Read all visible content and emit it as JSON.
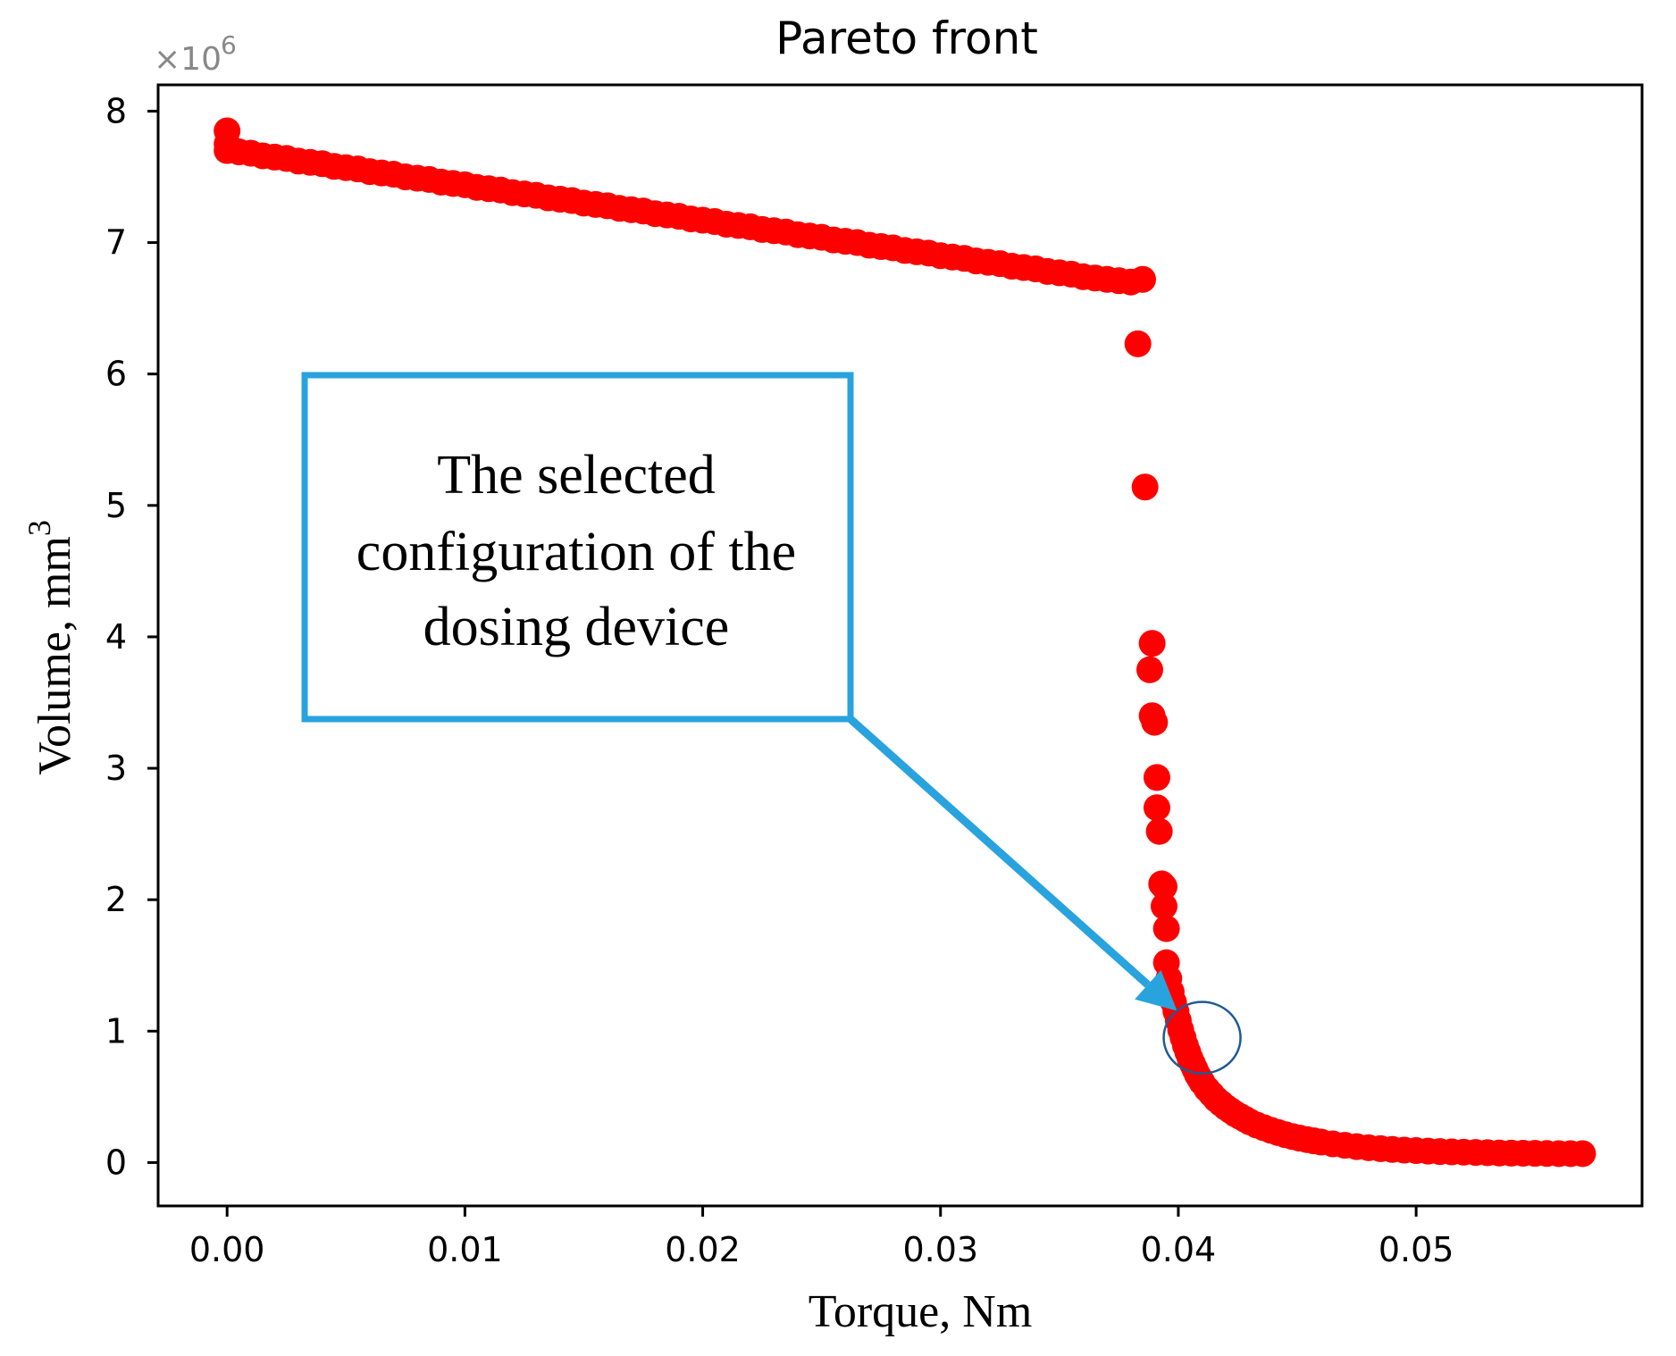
{
  "chart_data": {
    "type": "scatter",
    "title": "Pareto front",
    "xlabel": "Torque, Nm",
    "ylabel": "Volume, mm",
    "ylabel_superscript": "3",
    "y_multiplier_base": "×10",
    "y_multiplier_exponent": "6",
    "xlim": [
      -0.0029,
      0.0595
    ],
    "ylim": [
      -0.33,
      8.2
    ],
    "x_ticks": [
      0.0,
      0.01,
      0.02,
      0.03,
      0.04,
      0.05
    ],
    "x_tick_labels": [
      "0.00",
      "0.01",
      "0.02",
      "0.03",
      "0.04",
      "0.05"
    ],
    "y_ticks": [
      0,
      1,
      2,
      3,
      4,
      5,
      6,
      7,
      8
    ],
    "y_tick_labels": [
      "0",
      "1",
      "2",
      "3",
      "4",
      "5",
      "6",
      "7",
      "8"
    ],
    "grid": false,
    "legend": false,
    "marker_color": "#ff0000",
    "annotation_color": "#29a3dd",
    "highlight_color": "#1f5a96",
    "series": [
      {
        "x": [
          0.0,
          0.0,
          0.0,
          0.0005,
          0.001,
          0.0015,
          0.002,
          0.0025,
          0.003,
          0.0035,
          0.004,
          0.0045,
          0.005,
          0.0055,
          0.006,
          0.0065,
          0.007,
          0.0075,
          0.008,
          0.0085,
          0.009,
          0.0095,
          0.01,
          0.0105,
          0.011,
          0.0115,
          0.012,
          0.0125,
          0.013,
          0.0135,
          0.014,
          0.0145,
          0.015,
          0.0155,
          0.016,
          0.0165,
          0.017,
          0.0175,
          0.018,
          0.0185,
          0.019,
          0.0195,
          0.02,
          0.0205,
          0.021,
          0.0215,
          0.022,
          0.0225,
          0.023,
          0.0235,
          0.024,
          0.0245,
          0.025,
          0.0255,
          0.026,
          0.0265,
          0.027,
          0.0275,
          0.028,
          0.0285,
          0.029,
          0.0295,
          0.03,
          0.0305,
          0.031,
          0.0315,
          0.032,
          0.0325,
          0.033,
          0.0335,
          0.034,
          0.0345,
          0.035,
          0.0355,
          0.036,
          0.0365,
          0.037,
          0.0375,
          0.038,
          0.0385,
          0.0383,
          0.0386,
          0.0389,
          0.0388,
          0.0389,
          0.039,
          0.0391,
          0.0391,
          0.0392,
          0.0393,
          0.0394,
          0.0395,
          0.0394,
          0.0395,
          0.0396,
          0.0397,
          0.0398,
          0.0399,
          0.04,
          0.0401,
          0.0402,
          0.0403,
          0.0404,
          0.0405,
          0.0406,
          0.0407,
          0.0408,
          0.0409,
          0.041,
          0.0412,
          0.0414,
          0.0416,
          0.0418,
          0.042,
          0.0422,
          0.0424,
          0.0426,
          0.0428,
          0.043,
          0.0433,
          0.0436,
          0.0439,
          0.0442,
          0.0445,
          0.0448,
          0.0451,
          0.0454,
          0.0457,
          0.046,
          0.0465,
          0.047,
          0.0475,
          0.048,
          0.0485,
          0.049,
          0.0495,
          0.05,
          0.0505,
          0.051,
          0.0515,
          0.052,
          0.0525,
          0.053,
          0.0535,
          0.054,
          0.0545,
          0.055,
          0.0555,
          0.056,
          0.0565,
          0.057
        ],
        "y": [
          7.85,
          7.75,
          7.7,
          7.69,
          7.68,
          7.66,
          7.65,
          7.64,
          7.62,
          7.61,
          7.6,
          7.58,
          7.57,
          7.56,
          7.54,
          7.53,
          7.52,
          7.5,
          7.49,
          7.48,
          7.46,
          7.45,
          7.44,
          7.42,
          7.41,
          7.4,
          7.38,
          7.37,
          7.36,
          7.34,
          7.33,
          7.32,
          7.3,
          7.29,
          7.28,
          7.26,
          7.25,
          7.24,
          7.22,
          7.21,
          7.2,
          7.18,
          7.17,
          7.16,
          7.14,
          7.13,
          7.12,
          7.1,
          7.09,
          7.08,
          7.06,
          7.05,
          7.04,
          7.02,
          7.01,
          7.0,
          6.98,
          6.97,
          6.96,
          6.94,
          6.93,
          6.92,
          6.9,
          6.89,
          6.88,
          6.86,
          6.85,
          6.84,
          6.82,
          6.81,
          6.8,
          6.78,
          6.77,
          6.76,
          6.74,
          6.73,
          6.72,
          6.71,
          6.7,
          6.72,
          6.23,
          5.14,
          3.95,
          3.75,
          3.4,
          3.35,
          2.93,
          2.7,
          2.52,
          2.12,
          1.95,
          1.78,
          2.1,
          1.52,
          1.4,
          1.3,
          1.22,
          1.15,
          1.08,
          1.01,
          0.95,
          0.89,
          0.84,
          0.79,
          0.75,
          0.71,
          0.67,
          0.64,
          0.61,
          0.56,
          0.52,
          0.48,
          0.45,
          0.42,
          0.395,
          0.37,
          0.35,
          0.33,
          0.31,
          0.285,
          0.265,
          0.245,
          0.228,
          0.212,
          0.198,
          0.186,
          0.175,
          0.165,
          0.156,
          0.142,
          0.131,
          0.121,
          0.113,
          0.106,
          0.1,
          0.095,
          0.091,
          0.087,
          0.084,
          0.081,
          0.079,
          0.077,
          0.075,
          0.073,
          0.072,
          0.071,
          0.07,
          0.069,
          0.068,
          0.068,
          0.068
        ]
      }
    ],
    "annotation": {
      "lines": [
        "The selected",
        "configuration of the",
        "dosing device"
      ],
      "target_x": 0.041,
      "target_y": 0.95
    }
  }
}
